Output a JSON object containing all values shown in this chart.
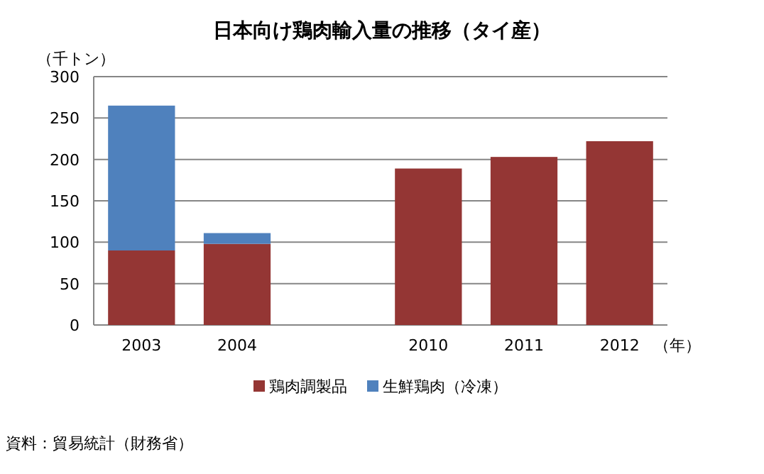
{
  "chart_data": {
    "type": "bar",
    "title": "日本向け鶏肉輸入量の推移（タイ産）",
    "ylabel": "（千トン）",
    "xlabel": "（年）",
    "categories": [
      "2003",
      "2004",
      null,
      "2010",
      "2011",
      "2012"
    ],
    "series": [
      {
        "name": "鶏肉調製品",
        "color": "#943634",
        "values": [
          90,
          98,
          null,
          189,
          203,
          222
        ]
      },
      {
        "name": "生鮮鶏肉（冷凍）",
        "color": "#4f81bd",
        "values": [
          175,
          13,
          null,
          null,
          null,
          null
        ]
      }
    ],
    "stacked": true,
    "ylim": [
      0,
      300
    ],
    "yticks": [
      0,
      50,
      100,
      150,
      200,
      250,
      300
    ],
    "grid": "y",
    "legend": "bottom",
    "annotations": [
      "資料：貿易統計（財務省）"
    ]
  }
}
